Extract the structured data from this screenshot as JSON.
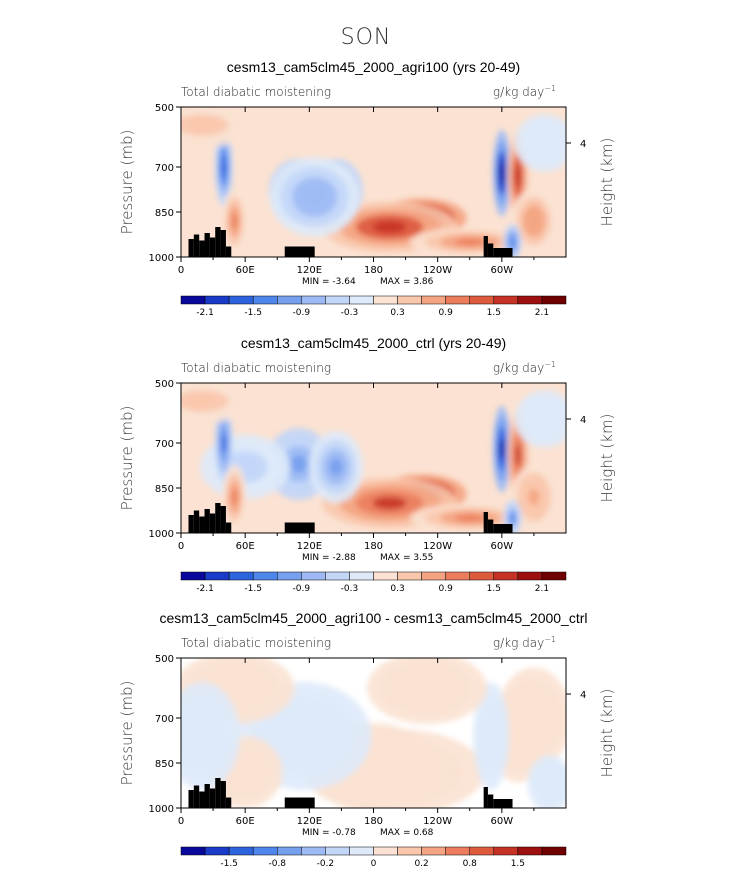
{
  "figure_title": "SON",
  "chart_data": [
    {
      "type": "heatmap",
      "title": "cesm13_cam5clm45_2000_agri100 (yrs 20-49)",
      "left_label": "Total diabatic moistening",
      "units": "g/kg day",
      "units_exp": "−1",
      "ylabel": "Pressure (mb)",
      "ylabel_right": "Height (km)",
      "x_ticks": [
        "0",
        "60E",
        "120E",
        "180",
        "120W",
        "60W"
      ],
      "y_ticks": [
        "500",
        "700",
        "850",
        "1000"
      ],
      "y_right_ticks": [
        "4"
      ],
      "min_label": "MIN =   -3.64",
      "max_label": "MAX =    3.86",
      "colorbar_labels": [
        "-2.1",
        "-1.5",
        "-0.9",
        "-0.3",
        "0.3",
        "0.9",
        "1.5",
        "2.1"
      ],
      "colorbar_colors": [
        "#08089a",
        "#1a3bc8",
        "#2e63de",
        "#4f86ec",
        "#769fee",
        "#9dbaf4",
        "#c2d6f8",
        "#deeafa",
        "#fbe2d2",
        "#f9c7ac",
        "#f4a482",
        "#eb7d5c",
        "#de5a3d",
        "#c63226",
        "#9c1010",
        "#700000"
      ],
      "features": [
        {
          "lon": 225,
          "p": 870,
          "value": 3.0,
          "lon_w": 30,
          "p_w": 55
        },
        {
          "lon": 195,
          "p": 900,
          "value": 1.8,
          "lon_w": 45,
          "p_w": 70
        },
        {
          "lon": 270,
          "p": 950,
          "value": 1.0,
          "lon_w": 40,
          "p_w": 40
        },
        {
          "lon": 110,
          "p": 780,
          "value": -1.4,
          "lon_w": 20,
          "p_w": 90
        },
        {
          "lon": 145,
          "p": 780,
          "value": -1.2,
          "lon_w": 18,
          "p_w": 90
        },
        {
          "lon": 125,
          "p": 800,
          "value": -0.9,
          "lon_w": 30,
          "p_w": 110
        },
        {
          "lon": 40,
          "p": 700,
          "value": -1.8,
          "lon_w": 6,
          "p_w": 110
        },
        {
          "lon": 300,
          "p": 720,
          "value": -2.6,
          "lon_w": 6,
          "p_w": 120
        },
        {
          "lon": 315,
          "p": 730,
          "value": 1.8,
          "lon_w": 7,
          "p_w": 120
        },
        {
          "lon": 330,
          "p": 880,
          "value": 0.9,
          "lon_w": 15,
          "p_w": 90
        },
        {
          "lon": 50,
          "p": 880,
          "value": 1.1,
          "lon_w": 8,
          "p_w": 90
        },
        {
          "lon": 310,
          "p": 950,
          "value": -1.4,
          "lon_w": 6,
          "p_w": 50
        },
        {
          "lon": 20,
          "p": 560,
          "value": 0.5,
          "lon_w": 35,
          "p_w": 60
        },
        {
          "lon": 340,
          "p": 620,
          "value": -0.3,
          "lon_w": 20,
          "p_w": 80
        }
      ]
    },
    {
      "type": "heatmap",
      "title": "cesm13_cam5clm45_2000_ctrl (yrs 20-49)",
      "left_label": "Total diabatic moistening",
      "units": "g/kg day",
      "units_exp": "−1",
      "ylabel": "Pressure (mb)",
      "ylabel_right": "Height (km)",
      "x_ticks": [
        "0",
        "60E",
        "120E",
        "180",
        "120W",
        "60W"
      ],
      "y_ticks": [
        "500",
        "700",
        "850",
        "1000"
      ],
      "y_right_ticks": [
        "4"
      ],
      "min_label": "MIN =   -2.88",
      "max_label": "MAX =    3.55",
      "colorbar_labels": [
        "-2.1",
        "-1.5",
        "-0.9",
        "-0.3",
        "0.3",
        "0.9",
        "1.5",
        "2.1"
      ],
      "colorbar_colors": [
        "#08089a",
        "#1a3bc8",
        "#2e63de",
        "#4f86ec",
        "#769fee",
        "#9dbaf4",
        "#c2d6f8",
        "#deeafa",
        "#fbe2d2",
        "#f9c7ac",
        "#f4a482",
        "#eb7d5c",
        "#de5a3d",
        "#c63226",
        "#9c1010",
        "#700000"
      ],
      "features": [
        {
          "lon": 225,
          "p": 870,
          "value": 2.9,
          "lon_w": 30,
          "p_w": 55
        },
        {
          "lon": 195,
          "p": 900,
          "value": 1.7,
          "lon_w": 45,
          "p_w": 70
        },
        {
          "lon": 270,
          "p": 950,
          "value": 1.0,
          "lon_w": 40,
          "p_w": 40
        },
        {
          "lon": 110,
          "p": 770,
          "value": -1.2,
          "lon_w": 22,
          "p_w": 100
        },
        {
          "lon": 145,
          "p": 780,
          "value": -1.1,
          "lon_w": 18,
          "p_w": 100
        },
        {
          "lon": 60,
          "p": 780,
          "value": -0.6,
          "lon_w": 30,
          "p_w": 90
        },
        {
          "lon": 40,
          "p": 700,
          "value": -1.7,
          "lon_w": 6,
          "p_w": 110
        },
        {
          "lon": 300,
          "p": 720,
          "value": -2.4,
          "lon_w": 6,
          "p_w": 120
        },
        {
          "lon": 315,
          "p": 740,
          "value": 1.7,
          "lon_w": 7,
          "p_w": 120
        },
        {
          "lon": 330,
          "p": 880,
          "value": 0.8,
          "lon_w": 15,
          "p_w": 90
        },
        {
          "lon": 50,
          "p": 880,
          "value": 1.0,
          "lon_w": 8,
          "p_w": 90
        },
        {
          "lon": 310,
          "p": 950,
          "value": -1.3,
          "lon_w": 6,
          "p_w": 50
        },
        {
          "lon": 20,
          "p": 560,
          "value": 0.5,
          "lon_w": 35,
          "p_w": 60
        },
        {
          "lon": 340,
          "p": 620,
          "value": -0.3,
          "lon_w": 20,
          "p_w": 80
        }
      ]
    },
    {
      "type": "heatmap",
      "title": "cesm13_cam5clm45_2000_agri100 - cesm13_cam5clm45_2000_ctrl",
      "left_label": "Total diabatic moistening",
      "units": "g/kg day",
      "units_exp": "−1",
      "ylabel": "Pressure (mb)",
      "ylabel_right": "Height (km)",
      "x_ticks": [
        "0",
        "60E",
        "120E",
        "180",
        "120W",
        "60W"
      ],
      "y_ticks": [
        "500",
        "700",
        "850",
        "1000"
      ],
      "y_right_ticks": [
        "4"
      ],
      "min_label": "MIN =   -0.78",
      "max_label": "MAX =    0.68",
      "colorbar_labels": [
        "-1.5",
        "-0.8",
        "-0.2",
        "0",
        "0.2",
        "0.8",
        "1.5"
      ],
      "colorbar_colors": [
        "#08089a",
        "#1a3bc8",
        "#2e63de",
        "#4f86ec",
        "#769fee",
        "#9dbaf4",
        "#c2d6f8",
        "#deeafa",
        "#fbe2d2",
        "#f9c7ac",
        "#f4a482",
        "#eb7d5c",
        "#de5a3d",
        "#c63226",
        "#9c1010",
        "#700000"
      ],
      "features": [
        {
          "lon": 180,
          "p": 860,
          "value": 0.35,
          "lon_w": 40,
          "p_w": 120
        },
        {
          "lon": 200,
          "p": 880,
          "value": 0.25,
          "lon_w": 60,
          "p_w": 120
        },
        {
          "lon": 315,
          "p": 760,
          "value": 0.3,
          "lon_w": 18,
          "p_w": 130
        },
        {
          "lon": 330,
          "p": 700,
          "value": 0.15,
          "lon_w": 25,
          "p_w": 140
        },
        {
          "lon": 115,
          "p": 760,
          "value": -0.12,
          "lon_w": 45,
          "p_w": 150
        },
        {
          "lon": 290,
          "p": 760,
          "value": -0.2,
          "lon_w": 12,
          "p_w": 150
        },
        {
          "lon": 345,
          "p": 920,
          "value": -0.12,
          "lon_w": 15,
          "p_w": 80
        },
        {
          "lon": 60,
          "p": 880,
          "value": 0.1,
          "lon_w": 25,
          "p_w": 100
        },
        {
          "lon": 50,
          "p": 600,
          "value": 0.08,
          "lon_w": 40,
          "p_w": 100
        },
        {
          "lon": 230,
          "p": 600,
          "value": 0.08,
          "lon_w": 40,
          "p_w": 100
        },
        {
          "lon": 20,
          "p": 760,
          "value": -0.08,
          "lon_w": 25,
          "p_w": 150
        }
      ]
    }
  ],
  "land": [
    {
      "lon": [
        7,
        12
      ],
      "p": 940
    },
    {
      "lon": [
        12,
        17
      ],
      "p": 925
    },
    {
      "lon": [
        17,
        22
      ],
      "p": 945
    },
    {
      "lon": [
        22,
        27
      ],
      "p": 920
    },
    {
      "lon": [
        27,
        32
      ],
      "p": 935
    },
    {
      "lon": [
        32,
        37
      ],
      "p": 900
    },
    {
      "lon": [
        37,
        42
      ],
      "p": 910
    },
    {
      "lon": [
        42,
        47
      ],
      "p": 965
    },
    {
      "lon": [
        97,
        125
      ],
      "p": 965
    },
    {
      "lon": [
        283,
        287
      ],
      "p": 930
    },
    {
      "lon": [
        287,
        292
      ],
      "p": 955
    },
    {
      "lon": [
        292,
        310
      ],
      "p": 970
    }
  ]
}
